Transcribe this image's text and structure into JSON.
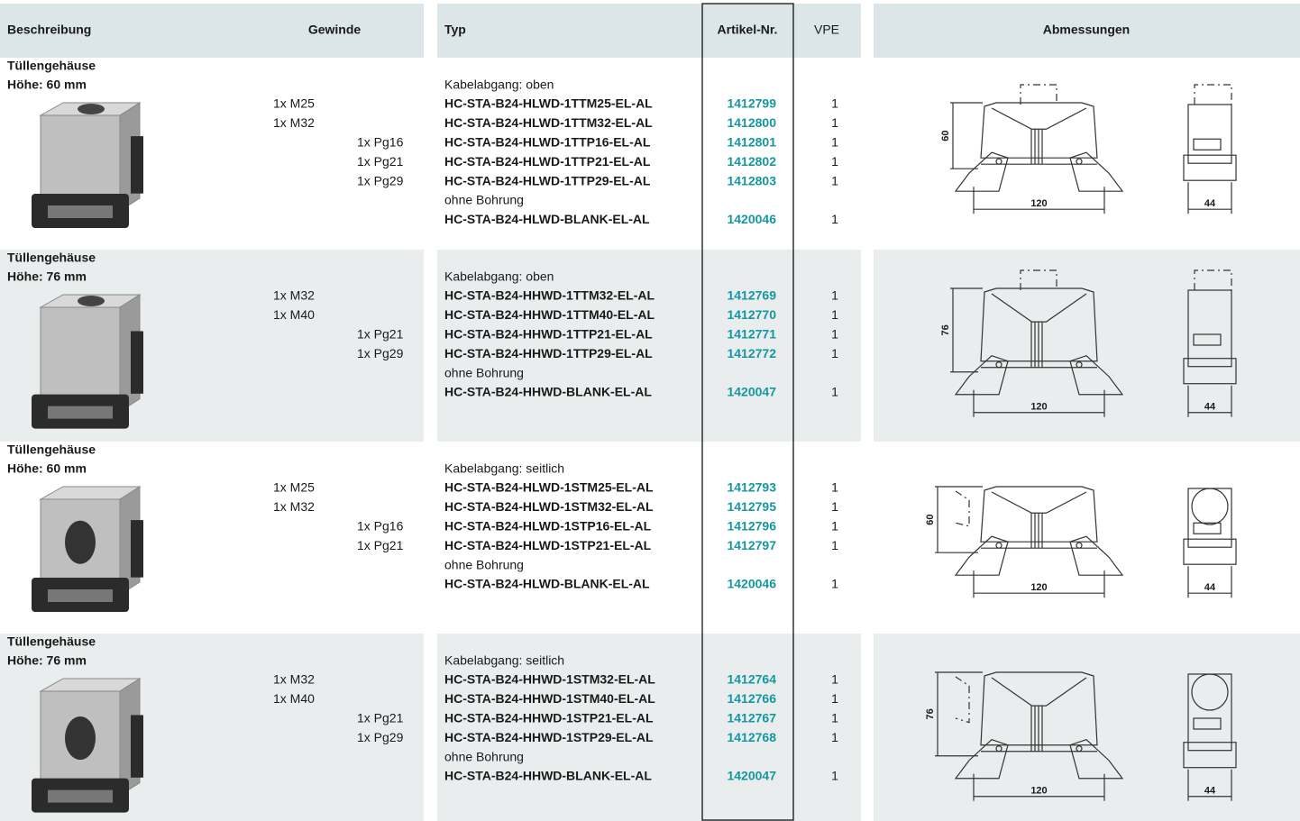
{
  "header": {
    "beschreibung": "Beschreibung",
    "gewinde": "Gewinde",
    "typ": "Typ",
    "artikel": "Artikel-Nr.",
    "vpe": "VPE",
    "abmessungen": "Abmessungen"
  },
  "sections": [
    {
      "title": "Tüllengehäuse",
      "subtitle": "Höhe: 60 mm",
      "threads_m": [
        "1x M25",
        "1x M32"
      ],
      "threads_pg": [
        "1x Pg16",
        "1x Pg21",
        "1x Pg29"
      ],
      "cable": "Kabelabgang: oben",
      "items": [
        {
          "typ": "HC-STA-B24-HLWD-1TTM25-EL-AL",
          "artikel": "1412799",
          "vpe": 1
        },
        {
          "typ": "HC-STA-B24-HLWD-1TTM32-EL-AL",
          "artikel": "1412800",
          "vpe": 1
        },
        {
          "typ": "HC-STA-B24-HLWD-1TTP16-EL-AL",
          "artikel": "1412801",
          "vpe": 1
        },
        {
          "typ": "HC-STA-B24-HLWD-1TTP21-EL-AL",
          "artikel": "1412802",
          "vpe": 1
        },
        {
          "typ": "HC-STA-B24-HLWD-1TTP29-EL-AL",
          "artikel": "1412803",
          "vpe": 1
        }
      ],
      "blank_label": "ohne Bohrung",
      "blank": {
        "typ": "HC-STA-B24-HLWD-BLANK-EL-AL",
        "artikel": "1420046",
        "vpe": 1
      },
      "dims": {
        "height": 60,
        "width": 120,
        "depth": 44
      }
    },
    {
      "title": "Tüllengehäuse",
      "subtitle": "Höhe: 76 mm",
      "threads_m": [
        "1x M32",
        "1x M40"
      ],
      "threads_pg": [
        "1x Pg21",
        "1x Pg29"
      ],
      "cable": "Kabelabgang: oben",
      "items": [
        {
          "typ": "HC-STA-B24-HHWD-1TTM32-EL-AL",
          "artikel": "1412769",
          "vpe": 1
        },
        {
          "typ": "HC-STA-B24-HHWD-1TTM40-EL-AL",
          "artikel": "1412770",
          "vpe": 1
        },
        {
          "typ": "HC-STA-B24-HHWD-1TTP21-EL-AL",
          "artikel": "1412771",
          "vpe": 1
        },
        {
          "typ": "HC-STA-B24-HHWD-1TTP29-EL-AL",
          "artikel": "1412772",
          "vpe": 1
        }
      ],
      "blank_label": "ohne Bohrung",
      "blank": {
        "typ": "HC-STA-B24-HHWD-BLANK-EL-AL",
        "artikel": "1420047",
        "vpe": 1
      },
      "dims": {
        "height": 76,
        "width": 120,
        "depth": 44
      }
    },
    {
      "title": "Tüllengehäuse",
      "subtitle": "Höhe: 60 mm",
      "threads_m": [
        "1x M25",
        "1x M32"
      ],
      "threads_pg": [
        "1x Pg16",
        "1x Pg21"
      ],
      "cable": "Kabelabgang: seitlich",
      "items": [
        {
          "typ": "HC-STA-B24-HLWD-1STM25-EL-AL",
          "artikel": "1412793",
          "vpe": 1
        },
        {
          "typ": "HC-STA-B24-HLWD-1STM32-EL-AL",
          "artikel": "1412795",
          "vpe": 1
        },
        {
          "typ": "HC-STA-B24-HLWD-1STP16-EL-AL",
          "artikel": "1412796",
          "vpe": 1
        },
        {
          "typ": "HC-STA-B24-HLWD-1STP21-EL-AL",
          "artikel": "1412797",
          "vpe": 1
        }
      ],
      "blank_label": "ohne Bohrung",
      "blank": {
        "typ": "HC-STA-B24-HLWD-BLANK-EL-AL",
        "artikel": "1420046",
        "vpe": 1
      },
      "dims": {
        "height": 60,
        "width": 120,
        "depth": 44
      }
    },
    {
      "title": "Tüllengehäuse",
      "subtitle": "Höhe: 76 mm",
      "threads_m": [
        "1x M32",
        "1x M40"
      ],
      "threads_pg": [
        "1x Pg21",
        "1x Pg29"
      ],
      "cable": "Kabelabgang: seitlich",
      "items": [
        {
          "typ": "HC-STA-B24-HHWD-1STM32-EL-AL",
          "artikel": "1412764",
          "vpe": 1
        },
        {
          "typ": "HC-STA-B24-HHWD-1STM40-EL-AL",
          "artikel": "1412766",
          "vpe": 1
        },
        {
          "typ": "HC-STA-B24-HHWD-1STP21-EL-AL",
          "artikel": "1412767",
          "vpe": 1
        },
        {
          "typ": "HC-STA-B24-HHWD-1STP29-EL-AL",
          "artikel": "1412768",
          "vpe": 1
        }
      ],
      "blank_label": "ohne Bohrung",
      "blank": {
        "typ": "HC-STA-B24-HHWD-BLANK-EL-AL",
        "artikel": "1420047",
        "vpe": 1
      },
      "dims": {
        "height": 76,
        "width": 120,
        "depth": 44
      }
    }
  ]
}
